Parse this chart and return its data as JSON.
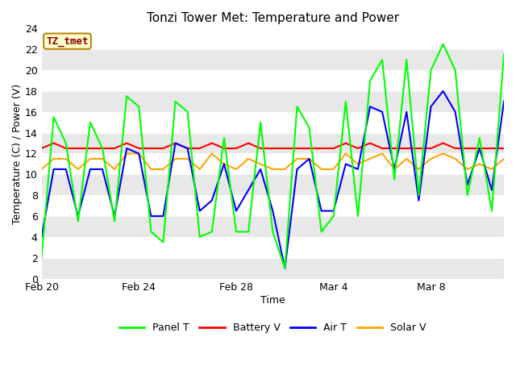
{
  "title": "Tonzi Tower Met: Temperature and Power",
  "xlabel": "Time",
  "ylabel": "Temperature (C) / Power (V)",
  "annotation": "TZ_tmet",
  "ylim": [
    0,
    24
  ],
  "yticks": [
    0,
    2,
    4,
    6,
    8,
    10,
    12,
    14,
    16,
    18,
    20,
    22,
    24
  ],
  "bg_color": "#ffffff",
  "plot_bg_color": "#ffffff",
  "band_colors": [
    "#ffffff",
    "#e8e8e8"
  ],
  "legend_entries": [
    "Panel T",
    "Battery V",
    "Air T",
    "Solar V"
  ],
  "line_colors": [
    "#00ff00",
    "#ff0000",
    "#0000ff",
    "#ffa500"
  ],
  "xtick_labels": [
    "Feb 20",
    "Feb 24",
    "Feb 28",
    "Mar 4",
    "Mar 8"
  ],
  "panel_t": [
    2.0,
    15.5,
    13.0,
    5.5,
    15.0,
    12.5,
    5.5,
    17.5,
    16.5,
    4.5,
    3.5,
    17.0,
    16.0,
    4.0,
    4.5,
    13.5,
    4.5,
    4.5,
    15.0,
    4.5,
    1.0,
    16.5,
    14.5,
    4.5,
    6.0,
    17.0,
    6.0,
    19.0,
    21.0,
    9.5,
    21.0,
    8.0,
    20.0,
    22.5,
    20.0,
    8.0,
    13.5,
    6.5,
    21.5
  ],
  "battery_v": [
    12.5,
    13.0,
    12.5,
    12.5,
    12.5,
    12.5,
    12.5,
    13.0,
    12.5,
    12.5,
    12.5,
    13.0,
    12.5,
    12.5,
    13.0,
    12.5,
    12.5,
    13.0,
    12.5,
    12.5,
    12.5,
    12.5,
    12.5,
    12.5,
    12.5,
    13.0,
    12.5,
    13.0,
    12.5,
    12.5,
    12.5,
    12.5,
    12.5,
    13.0,
    12.5,
    12.5,
    12.5,
    12.5,
    12.5
  ],
  "air_t": [
    4.0,
    10.5,
    10.5,
    6.0,
    10.5,
    10.5,
    6.0,
    12.5,
    12.0,
    6.0,
    6.0,
    13.0,
    12.5,
    6.5,
    7.5,
    11.0,
    6.5,
    8.5,
    10.5,
    6.5,
    1.0,
    10.5,
    11.5,
    6.5,
    6.5,
    11.0,
    10.5,
    16.5,
    16.0,
    10.5,
    16.0,
    7.5,
    16.5,
    18.0,
    16.0,
    9.0,
    12.5,
    8.5,
    17.0
  ],
  "solar_v": [
    10.5,
    11.5,
    11.5,
    10.5,
    11.5,
    11.5,
    10.5,
    12.0,
    12.0,
    10.5,
    10.5,
    11.5,
    11.5,
    10.5,
    12.0,
    11.0,
    10.5,
    11.5,
    11.0,
    10.5,
    10.5,
    11.5,
    11.5,
    10.5,
    10.5,
    12.0,
    11.0,
    11.5,
    12.0,
    10.5,
    11.5,
    10.5,
    11.5,
    12.0,
    11.5,
    10.5,
    11.0,
    10.5,
    11.5
  ]
}
